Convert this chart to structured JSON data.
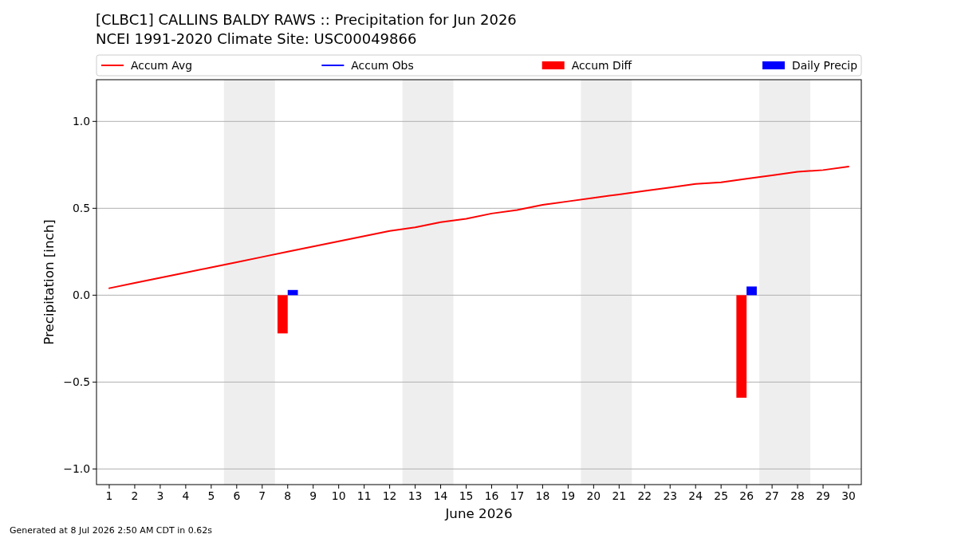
{
  "chart_data": {
    "type": "line",
    "title": "[CLBC1] CALLINS BALDY RAWS :: Precipitation for Jun 2026",
    "subtitle": "NCEI 1991-2020 Climate Site: USC00049866",
    "xlabel": "June 2026",
    "ylabel": "Precipitation [inch]",
    "annotations": [
      "Generated at 8 Jul 2026 2:50 AM CDT in 0.62s"
    ],
    "x": [
      1,
      2,
      3,
      4,
      5,
      6,
      7,
      8,
      9,
      10,
      11,
      12,
      13,
      14,
      15,
      16,
      17,
      18,
      19,
      20,
      21,
      22,
      23,
      24,
      25,
      26,
      27,
      28,
      29,
      30
    ],
    "series": [
      {
        "name": "Accum Avg",
        "color": "#ff0000",
        "values": [
          0.04,
          0.07,
          0.1,
          0.13,
          0.16,
          0.19,
          0.22,
          0.25,
          0.28,
          0.31,
          0.34,
          0.37,
          0.39,
          0.42,
          0.44,
          0.47,
          0.49,
          0.52,
          0.54,
          0.56,
          0.58,
          0.6,
          0.62,
          0.64,
          0.65,
          0.67,
          0.69,
          0.71,
          0.72,
          0.74
        ]
      },
      {
        "name": "Accum Obs",
        "color": "#0000ff",
        "values": [
          null,
          null,
          null,
          null,
          null,
          null,
          null,
          null,
          null,
          null,
          null,
          null,
          null,
          null,
          null,
          null,
          null,
          null,
          null,
          null,
          null,
          null,
          null,
          null,
          null,
          null,
          null,
          null,
          null,
          null
        ]
      },
      {
        "name": "Accum Diff",
        "type": "bar",
        "color": "#ff0000",
        "values": [
          null,
          null,
          null,
          null,
          null,
          null,
          null,
          -0.22,
          null,
          null,
          null,
          null,
          null,
          null,
          null,
          null,
          null,
          null,
          null,
          null,
          null,
          null,
          null,
          null,
          null,
          -0.59,
          null,
          null,
          null,
          null
        ]
      },
      {
        "name": "Daily Precip",
        "type": "bar",
        "color": "#0000ff",
        "values": [
          null,
          null,
          null,
          null,
          null,
          null,
          null,
          0.03,
          null,
          null,
          null,
          null,
          null,
          null,
          null,
          null,
          null,
          null,
          null,
          null,
          null,
          null,
          null,
          null,
          null,
          0.05,
          null,
          null,
          null,
          null
        ]
      }
    ],
    "xlim": [
      0.5,
      30.5
    ],
    "xticks": [
      1,
      2,
      3,
      4,
      5,
      6,
      7,
      8,
      9,
      10,
      11,
      12,
      13,
      14,
      15,
      16,
      17,
      18,
      19,
      20,
      21,
      22,
      23,
      24,
      25,
      26,
      27,
      28,
      29,
      30
    ],
    "ylim": [
      -1.09,
      1.24
    ],
    "yticks": [
      {
        "value": -1,
        "label": "−1.0"
      },
      {
        "value": -0.5,
        "label": "−0.5"
      },
      {
        "value": 0,
        "label": "0.0"
      },
      0.5,
      {
        "value": 1,
        "label": "1.0"
      }
    ],
    "bands": [
      {
        "axis": "x",
        "from": 5.5,
        "to": 7.5,
        "color": "#eeeeee"
      },
      {
        "axis": "x",
        "from": 12.5,
        "to": 14.5,
        "color": "#eeeeee"
      },
      {
        "axis": "x",
        "from": 19.5,
        "to": 21.5,
        "color": "#eeeeee"
      },
      {
        "axis": "x",
        "from": 26.5,
        "to": 28.5,
        "color": "#eeeeee"
      }
    ],
    "grid": "y",
    "legend": "top"
  }
}
